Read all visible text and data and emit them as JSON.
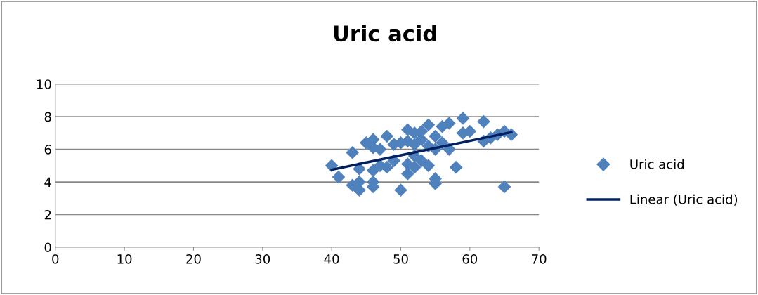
{
  "chart_data": {
    "type": "scatter",
    "title": "Uric acid",
    "xlim": [
      0,
      70
    ],
    "xticks": [
      0,
      10,
      20,
      30,
      40,
      50,
      60,
      70
    ],
    "ylim": [
      0,
      10
    ],
    "yticks": [
      0,
      2,
      4,
      6,
      8,
      10
    ],
    "grid": "y",
    "legend": "right",
    "marker": "diamond",
    "series": [
      {
        "name": "Uric acid",
        "color": "#4f81bd",
        "x": [
          40,
          41,
          43,
          43,
          44,
          44,
          44,
          45,
          46,
          46,
          46,
          46,
          46,
          47,
          47,
          48,
          48,
          49,
          49,
          50,
          50,
          51,
          51,
          51,
          51,
          52,
          52,
          52,
          52,
          53,
          53,
          53,
          54,
          54,
          54,
          55,
          55,
          55,
          55,
          56,
          56,
          57,
          57,
          58,
          59,
          59,
          60,
          62,
          62,
          63,
          64,
          65,
          65,
          66
        ],
        "values": [
          5.0,
          4.3,
          5.8,
          3.8,
          3.5,
          4.8,
          4.0,
          6.4,
          6.6,
          6.1,
          4.7,
          4.0,
          3.7,
          6.0,
          5.0,
          6.8,
          4.9,
          5.3,
          6.3,
          6.4,
          3.5,
          7.2,
          6.5,
          5.1,
          4.5,
          7.0,
          6.3,
          5.6,
          4.9,
          6.6,
          5.3,
          7.1,
          7.5,
          6.2,
          5.0,
          6.8,
          6.0,
          4.2,
          3.9,
          7.4,
          6.4,
          7.6,
          6.0,
          4.9,
          7.9,
          7.0,
          7.1,
          7.7,
          6.5,
          6.7,
          6.9,
          7.1,
          3.7,
          6.9
        ]
      },
      {
        "name": "Linear (Uric acid)",
        "type": "line",
        "color": "#002060",
        "marker": "none",
        "x": [
          40,
          66
        ],
        "values": [
          4.75,
          7.05
        ]
      }
    ]
  }
}
